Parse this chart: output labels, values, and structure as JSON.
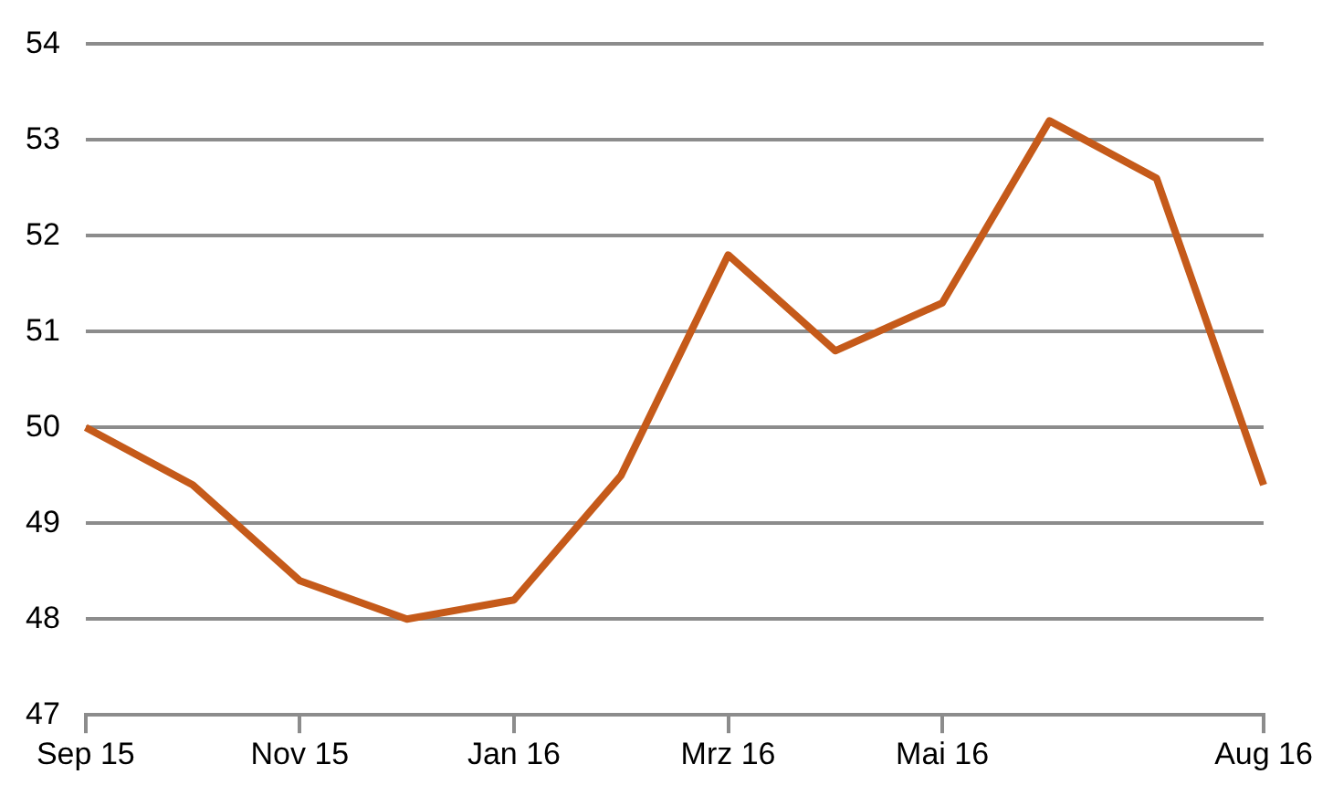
{
  "chart_data": {
    "type": "line",
    "categories": [
      "Sep 15",
      null,
      "Nov 15",
      null,
      "Jan 16",
      null,
      "Mrz 16",
      null,
      "Mai 16",
      null,
      null,
      "Aug 16"
    ],
    "series": [
      {
        "color": "#c55a1a",
        "values": [
          50,
          49.4,
          48.4,
          48,
          48.2,
          49.5,
          51.8,
          50.8,
          51.3,
          53.2,
          52.6,
          49.4
        ]
      }
    ],
    "ylim": [
      47,
      54
    ],
    "yticks": [
      47,
      48,
      49,
      50,
      51,
      52,
      53,
      54
    ],
    "grid": "y",
    "legend": false,
    "marker": "none",
    "line_style": "solid"
  }
}
